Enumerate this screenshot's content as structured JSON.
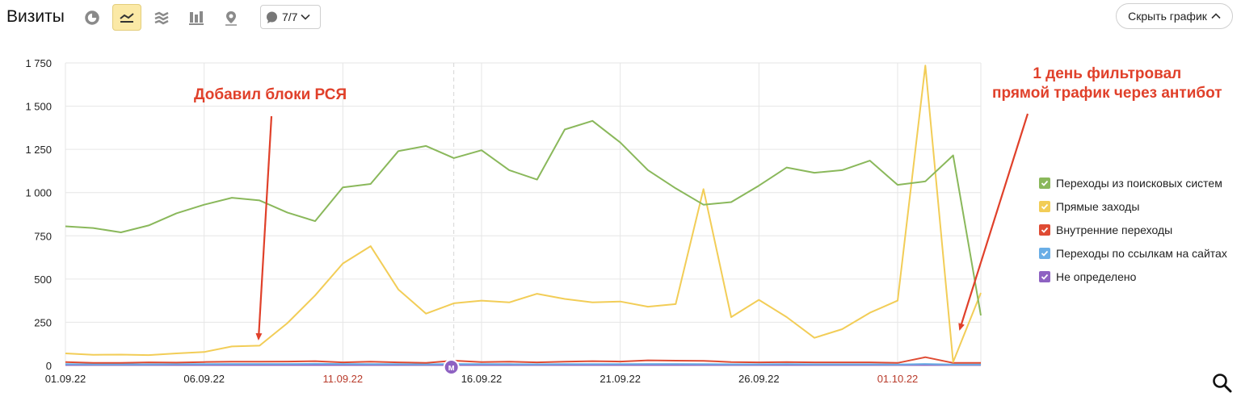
{
  "toolbar": {
    "title": "Визиты",
    "buttons": [
      {
        "name": "pie-chart-icon",
        "active": false
      },
      {
        "name": "line-chart-icon",
        "active": true
      },
      {
        "name": "area-chart-icon",
        "active": false
      },
      {
        "name": "bar-chart-icon",
        "active": false
      },
      {
        "name": "map-icon",
        "active": false
      }
    ],
    "series_selector": "7/7",
    "hide_chart_label": "Скрыть график"
  },
  "annotations": [
    {
      "text": "Добавил блоки РСЯ"
    },
    {
      "lines": [
        "1 день фильтровал",
        "прямой трафик через антибот"
      ]
    }
  ],
  "annotation_color": "#e0402a",
  "marker_label": "м",
  "marker_color": "#8e62c2",
  "chart_data": {
    "type": "line",
    "x": [
      "01.09.22",
      "02.09.22",
      "03.09.22",
      "04.09.22",
      "05.09.22",
      "06.09.22",
      "07.09.22",
      "08.09.22",
      "09.09.22",
      "10.09.22",
      "11.09.22",
      "12.09.22",
      "13.09.22",
      "14.09.22",
      "15.09.22",
      "16.09.22",
      "17.09.22",
      "18.09.22",
      "19.09.22",
      "20.09.22",
      "21.09.22",
      "22.09.22",
      "23.09.22",
      "24.09.22",
      "25.09.22",
      "26.09.22",
      "27.09.22",
      "28.09.22",
      "29.09.22",
      "30.09.22",
      "01.10.22",
      "02.10.22",
      "03.10.22",
      "04.10.22"
    ],
    "x_tick_labels": [
      {
        "index": 0,
        "label": "01.09.22",
        "weekend": false
      },
      {
        "index": 5,
        "label": "06.09.22",
        "weekend": false
      },
      {
        "index": 10,
        "label": "11.09.22",
        "weekend": true
      },
      {
        "index": 15,
        "label": "16.09.22",
        "weekend": false
      },
      {
        "index": 20,
        "label": "21.09.22",
        "weekend": false
      },
      {
        "index": 25,
        "label": "26.09.22",
        "weekend": false
      },
      {
        "index": 30,
        "label": "01.10.22",
        "weekend": true
      }
    ],
    "y_ticks": [
      0,
      250,
      500,
      750,
      1000,
      1250,
      1500,
      1750
    ],
    "y_tick_labels": [
      "0",
      "250",
      "500",
      "750",
      "1 000",
      "1 250",
      "1 500",
      "1 750"
    ],
    "ylim": [
      0,
      1750
    ],
    "grid": true,
    "legend_position": "right",
    "series": [
      {
        "name": "Переходы из поисковых систем",
        "color": "#8ab85b",
        "values": [
          805,
          795,
          770,
          810,
          880,
          930,
          970,
          955,
          885,
          835,
          1030,
          1050,
          1240,
          1270,
          1200,
          1245,
          1130,
          1075,
          1365,
          1415,
          1290,
          1130,
          1025,
          930,
          945,
          1040,
          1145,
          1115,
          1130,
          1185,
          1045,
          1065,
          1215,
          290
        ]
      },
      {
        "name": "Прямые заходы",
        "color": "#f2cd57",
        "values": [
          70,
          62,
          63,
          60,
          70,
          78,
          110,
          115,
          245,
          405,
          590,
          690,
          440,
          300,
          360,
          375,
          365,
          415,
          385,
          365,
          370,
          340,
          355,
          1020,
          280,
          380,
          280,
          160,
          210,
          305,
          375,
          1735,
          20,
          420
        ]
      },
      {
        "name": "Внутренние переходы",
        "color": "#df4b33",
        "values": [
          20,
          15,
          15,
          18,
          17,
          20,
          22,
          22,
          23,
          25,
          18,
          22,
          18,
          15,
          28,
          20,
          22,
          18,
          22,
          25,
          23,
          30,
          28,
          27,
          20,
          18,
          20,
          18,
          18,
          18,
          15,
          48,
          15,
          15
        ]
      },
      {
        "name": "Переходы по ссылкам на сайтах",
        "color": "#6aaee6",
        "values": [
          8,
          7,
          7,
          7,
          8,
          8,
          9,
          9,
          9,
          10,
          9,
          8,
          8,
          7,
          9,
          8,
          8,
          7,
          8,
          8,
          8,
          9,
          9,
          8,
          7,
          7,
          8,
          7,
          7,
          7,
          6,
          9,
          6,
          6
        ]
      },
      {
        "name": "Не определено",
        "color": "#8e62c2",
        "values": [
          3,
          3,
          3,
          3,
          3,
          3,
          3,
          3,
          3,
          3,
          3,
          3,
          3,
          3,
          3,
          3,
          3,
          3,
          3,
          3,
          3,
          3,
          3,
          3,
          3,
          3,
          3,
          3,
          3,
          3,
          3,
          3,
          3,
          3
        ]
      }
    ]
  }
}
